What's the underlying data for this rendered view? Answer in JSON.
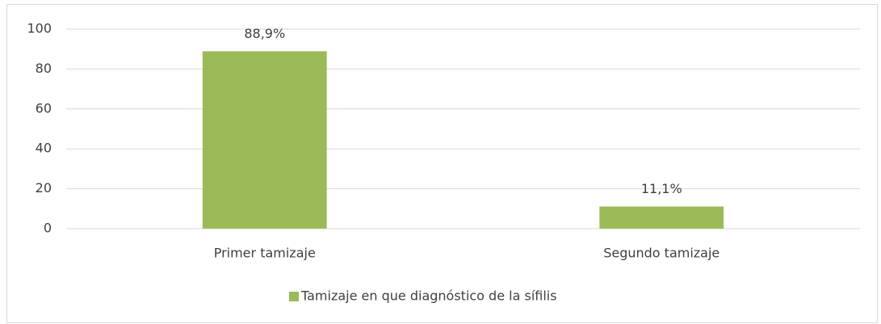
{
  "chart_data": {
    "type": "bar",
    "categories": [
      "Primer tamizaje",
      "Segundo tamizaje"
    ],
    "series": [
      {
        "name": "Tamizaje en que diagnóstico de la sífilis",
        "color": "#9bbb59",
        "values": [
          88.9,
          11.1
        ],
        "value_labels": [
          "88,9%",
          "11,1%"
        ]
      }
    ],
    "ylim": [
      0,
      100
    ],
    "yticks": [
      0,
      20,
      40,
      60,
      80,
      100
    ],
    "grid": true,
    "legend": "bottom"
  }
}
